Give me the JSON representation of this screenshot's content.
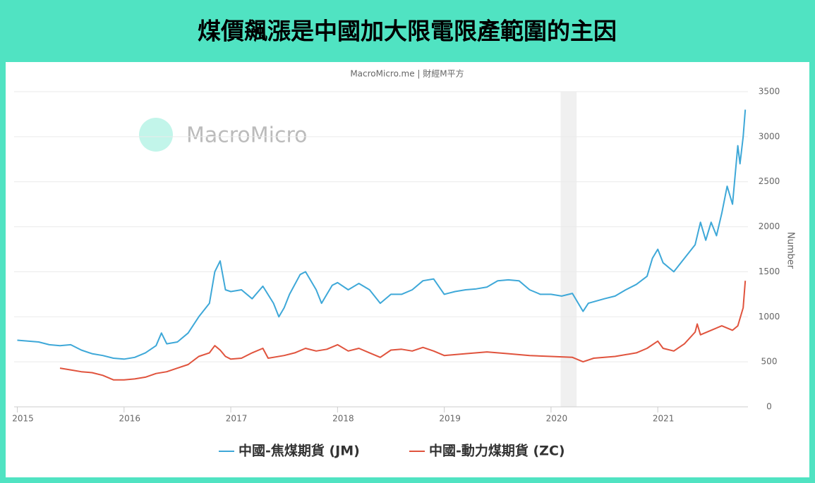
{
  "chart_data": {
    "type": "line",
    "title": "煤價飆漲是中國加大限電限產範圍的主因",
    "subtitle": "MacroMicro.me | 財經M平方",
    "watermark": "MacroMicro",
    "y_axis_label": "Number",
    "xlim": [
      2014.97,
      2021.845
    ],
    "xticks": [
      2015,
      2016,
      2017,
      2018,
      2019,
      2020,
      2021
    ],
    "ylim": [
      0,
      3500
    ],
    "yticks": [
      0,
      500,
      1000,
      1500,
      2000,
      2500,
      3000,
      3500
    ],
    "grid": true,
    "y_axis_side": "right",
    "legend": "bottom",
    "shade": [
      2020.09,
      2020.24
    ],
    "series": [
      {
        "name": "中國-焦煤期貨 (JM)",
        "color": "#3ea8d8",
        "x": [
          2015.0,
          2015.1,
          2015.2,
          2015.3,
          2015.4,
          2015.5,
          2015.6,
          2015.7,
          2015.8,
          2015.9,
          2016.0,
          2016.1,
          2016.2,
          2016.3,
          2016.35,
          2016.4,
          2016.5,
          2016.6,
          2016.7,
          2016.8,
          2016.85,
          2016.9,
          2016.95,
          2017.0,
          2017.1,
          2017.2,
          2017.3,
          2017.4,
          2017.45,
          2017.5,
          2017.55,
          2017.65,
          2017.7,
          2017.8,
          2017.85,
          2017.9,
          2017.95,
          2018.0,
          2018.1,
          2018.2,
          2018.3,
          2018.4,
          2018.5,
          2018.6,
          2018.7,
          2018.8,
          2018.9,
          2019.0,
          2019.1,
          2019.2,
          2019.3,
          2019.4,
          2019.5,
          2019.6,
          2019.7,
          2019.8,
          2019.9,
          2020.0,
          2020.1,
          2020.2,
          2020.3,
          2020.35,
          2020.5,
          2020.6,
          2020.7,
          2020.8,
          2020.9,
          2020.95,
          2021.0,
          2021.05,
          2021.15,
          2021.25,
          2021.35,
          2021.4,
          2021.45,
          2021.5,
          2021.55,
          2021.6,
          2021.65,
          2021.7,
          2021.75,
          2021.77,
          2021.8,
          2021.82
        ],
        "values": [
          740,
          730,
          720,
          690,
          680,
          690,
          630,
          590,
          570,
          540,
          530,
          550,
          600,
          680,
          820,
          700,
          720,
          820,
          1000,
          1150,
          1500,
          1620,
          1300,
          1280,
          1300,
          1200,
          1340,
          1150,
          1000,
          1100,
          1250,
          1470,
          1500,
          1300,
          1150,
          1250,
          1350,
          1380,
          1300,
          1370,
          1300,
          1150,
          1250,
          1250,
          1300,
          1400,
          1420,
          1250,
          1280,
          1300,
          1310,
          1330,
          1400,
          1410,
          1400,
          1300,
          1250,
          1250,
          1230,
          1260,
          1060,
          1150,
          1200,
          1230,
          1300,
          1360,
          1450,
          1650,
          1750,
          1600,
          1500,
          1650,
          1800,
          2050,
          1850,
          2050,
          1900,
          2150,
          2450,
          2250,
          2900,
          2700,
          3000,
          3300
        ]
      },
      {
        "name": "中國-動力煤期貨 (ZC)",
        "color": "#e0533d",
        "x": [
          2015.4,
          2015.5,
          2015.6,
          2015.7,
          2015.8,
          2015.9,
          2016.0,
          2016.1,
          2016.2,
          2016.3,
          2016.4,
          2016.5,
          2016.6,
          2016.7,
          2016.8,
          2016.85,
          2016.9,
          2016.95,
          2017.0,
          2017.1,
          2017.2,
          2017.3,
          2017.35,
          2017.5,
          2017.6,
          2017.7,
          2017.8,
          2017.9,
          2018.0,
          2018.1,
          2018.2,
          2018.3,
          2018.4,
          2018.5,
          2018.6,
          2018.7,
          2018.8,
          2018.9,
          2019.0,
          2019.2,
          2019.4,
          2019.6,
          2019.8,
          2020.0,
          2020.2,
          2020.3,
          2020.4,
          2020.6,
          2020.8,
          2020.9,
          2021.0,
          2021.05,
          2021.15,
          2021.25,
          2021.35,
          2021.37,
          2021.4,
          2021.5,
          2021.6,
          2021.7,
          2021.75,
          2021.8,
          2021.82
        ],
        "values": [
          430,
          410,
          390,
          380,
          350,
          300,
          300,
          310,
          330,
          370,
          390,
          430,
          470,
          560,
          600,
          680,
          630,
          560,
          530,
          540,
          600,
          650,
          540,
          570,
          600,
          650,
          620,
          640,
          690,
          620,
          650,
          600,
          550,
          630,
          640,
          620,
          660,
          620,
          570,
          590,
          610,
          590,
          570,
          560,
          550,
          500,
          540,
          560,
          600,
          650,
          730,
          650,
          620,
          700,
          830,
          920,
          800,
          850,
          900,
          850,
          900,
          1100,
          1400
        ]
      }
    ]
  }
}
